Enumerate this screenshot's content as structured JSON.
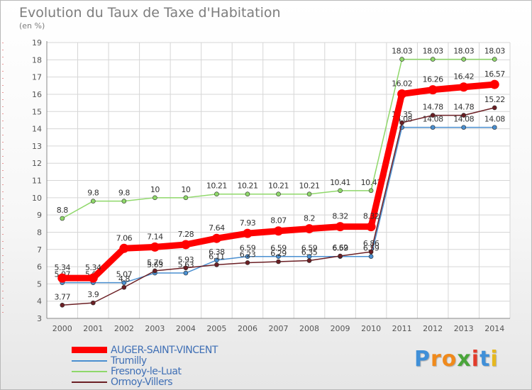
{
  "title": "Evolution du Taux de Taxe d'Habitation",
  "unit": "(en %)",
  "logo": {
    "letters": [
      "P",
      "r",
      "o",
      "x",
      "i",
      "t",
      "i"
    ],
    "colors": [
      "#3f8fd8",
      "#f08a1c",
      "#f08a1c",
      "#4aa53a",
      "#e23b2b",
      "#3f8fd8",
      "#e6b81e"
    ]
  },
  "chart_data": {
    "type": "line",
    "title": "Evolution du Taux de Taxe d'Habitation",
    "ylabel": "(en %)",
    "xlabel": "",
    "x": [
      "2000",
      "2001",
      "2002",
      "2003",
      "2004",
      "2005",
      "2006",
      "2007",
      "2008",
      "2009",
      "2010",
      "2011",
      "2012",
      "2013",
      "2014"
    ],
    "ylim": [
      3,
      19
    ],
    "yticks": [
      "3",
      "4",
      "5",
      "6",
      "7",
      "8",
      "9",
      "10",
      "11",
      "12",
      "13",
      "14",
      "15",
      "16",
      "17",
      "18",
      "19"
    ],
    "grid": true,
    "legend_position": "bottom-left",
    "series": [
      {
        "name": "Trumilly",
        "color": "#4a8fd0",
        "values": [
          5.07,
          5.07,
          5.07,
          5.63,
          5.63,
          6.38,
          6.59,
          6.59,
          6.59,
          6.59,
          6.59,
          14.08,
          14.08,
          14.08,
          14.08
        ],
        "labels": [
          "5.07",
          "5.07",
          "5.07",
          "5.63",
          "5.63",
          "6.38",
          "6.59",
          "6.59",
          "6.59",
          "6.59",
          "6.59",
          "14.08",
          "14.08",
          "14.08",
          "14.08"
        ]
      },
      {
        "name": "Fresnoy-le-Luat",
        "color": "#8fd86a",
        "values": [
          8.8,
          9.8,
          9.8,
          10,
          10,
          10.21,
          10.21,
          10.21,
          10.21,
          10.41,
          10.41,
          18.03,
          18.03,
          18.03,
          18.03
        ],
        "labels": [
          "8.8",
          "9.8",
          "9.8",
          "10",
          "10",
          "10.21",
          "10.21",
          "10.21",
          "10.21",
          "10.41",
          "10.41",
          "18.03",
          "18.03",
          "18.03",
          "18.03"
        ]
      },
      {
        "name": "Ormoy-Villers",
        "color": "#6b1f24",
        "values": [
          3.77,
          3.9,
          4.8,
          5.76,
          5.93,
          6.11,
          6.23,
          6.29,
          6.35,
          6.62,
          6.86,
          14.35,
          14.78,
          14.78,
          15.22
        ],
        "labels": [
          "3.77",
          "3.9",
          "4.8",
          "5.76",
          "5.93",
          "6.11",
          "6.23",
          "6.29",
          "6.35",
          "6.62",
          "6.86",
          "14.35",
          "14.78",
          "14.78",
          "15.22"
        ]
      },
      {
        "name": "AUGER-SAINT-VINCENT",
        "color": "#ff0000",
        "values": [
          5.34,
          5.34,
          7.06,
          7.14,
          7.28,
          7.64,
          7.93,
          8.07,
          8.2,
          8.32,
          8.32,
          16.02,
          16.26,
          16.42,
          16.57
        ],
        "labels": [
          "5.34",
          "5.34",
          "7.06",
          "7.14",
          "7.28",
          "7.64",
          "7.93",
          "8.07",
          "8.2",
          "8.32",
          "8.32",
          "16.02",
          "16.26",
          "16.42",
          "16.57"
        ]
      }
    ],
    "legend": [
      "AUGER-SAINT-VINCENT",
      "Trumilly",
      "Fresnoy-le-Luat",
      "Ormoy-Villers"
    ]
  }
}
